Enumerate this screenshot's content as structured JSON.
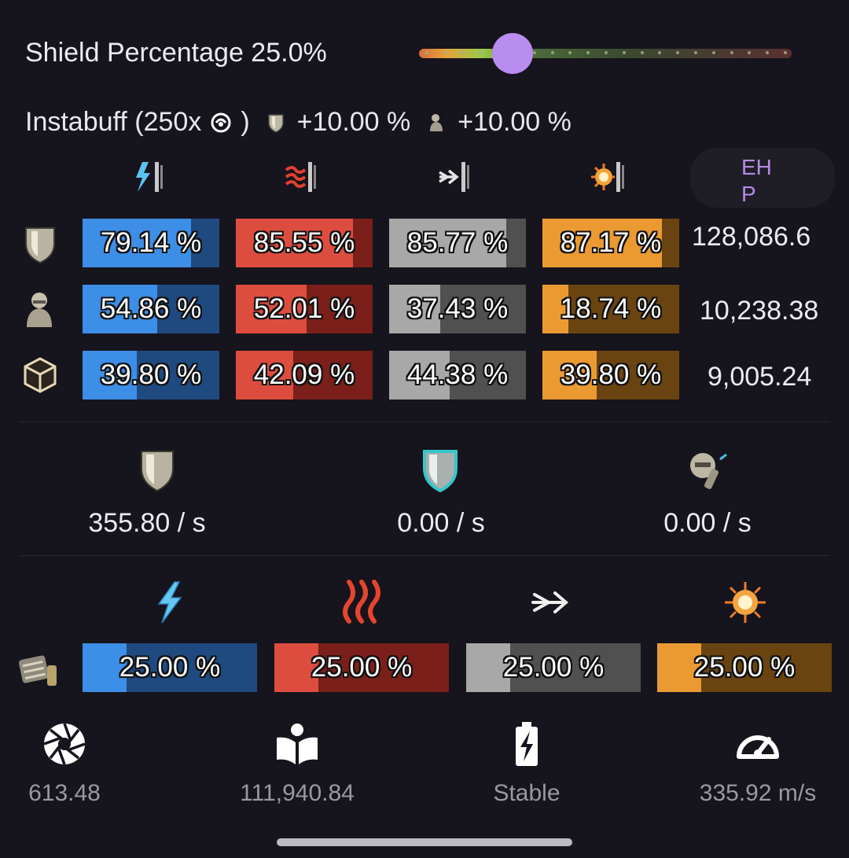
{
  "shield": {
    "label": "Shield Percentage 25.0%",
    "slider_value": 0.25
  },
  "instabuff": {
    "prefix": "Instabuff (250x",
    "suffix": ")",
    "shield_bonus": "+10.00 %",
    "armor_bonus": "+10.00 %"
  },
  "ehp": {
    "header": "EHP"
  },
  "resist_headers": [
    "em-resist-icon",
    "thermal-resist-icon",
    "kinetic-resist-icon",
    "explosive-resist-icon"
  ],
  "resists": {
    "shield": {
      "icon": "shield-icon",
      "values": [
        "79.14 %",
        "85.55 %",
        "85.77 %",
        "87.17 %"
      ],
      "fractions": [
        0.7914,
        0.8555,
        0.8577,
        0.8717
      ],
      "ehp": "128,086.6"
    },
    "armor": {
      "icon": "armor-icon",
      "values": [
        "54.86 %",
        "52.01 %",
        "37.43 %",
        "18.74 %"
      ],
      "fractions": [
        0.5486,
        0.5201,
        0.3743,
        0.1874
      ],
      "ehp": "10,238.38"
    },
    "hull": {
      "icon": "hull-icon",
      "values": [
        "39.80 %",
        "42.09 %",
        "44.38 %",
        "39.80 %"
      ],
      "fractions": [
        0.398,
        0.4209,
        0.4438,
        0.398
      ],
      "ehp": "9,005.24"
    }
  },
  "repairs": [
    {
      "icon": "shield-regen-icon",
      "value": "355.80 / s"
    },
    {
      "icon": "shield-booster-icon",
      "value": "0.00 / s"
    },
    {
      "icon": "armor-repairer-icon",
      "value": "0.00 / s"
    }
  ],
  "damage_profile": {
    "icon": "damage-pattern-icon",
    "headers": [
      "em-damage-icon",
      "thermal-damage-icon",
      "kinetic-damage-icon",
      "explosive-damage-icon"
    ],
    "values": [
      "25.00 %",
      "25.00 %",
      "25.00 %",
      "25.00 %"
    ],
    "fractions": [
      0.25,
      0.25,
      0.25,
      0.25
    ]
  },
  "stats": [
    {
      "icon": "aperture-icon",
      "value": "613.48"
    },
    {
      "icon": "book-icon",
      "value": "111,940.84"
    },
    {
      "icon": "battery-charging-icon",
      "value": "Stable"
    },
    {
      "icon": "speedometer-icon",
      "value": "335.92 m/s"
    }
  ],
  "colors": {
    "em": "#3d8ee6",
    "thermal": "#dd4d3f",
    "kinetic": "#a8a8a8",
    "explosive": "#eb9a32",
    "accent": "#b98cf0"
  }
}
